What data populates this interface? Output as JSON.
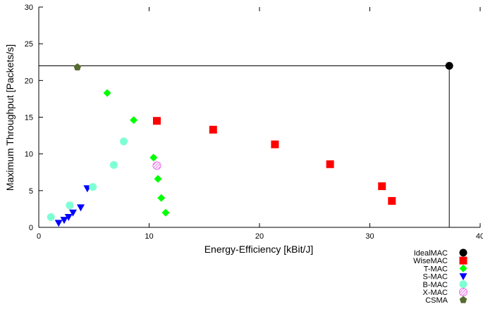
{
  "chart_data": {
    "type": "scatter",
    "title": "",
    "xlabel": "Energy-Efficiency [kBit/J]",
    "ylabel": "Maximum Throughput [Packets/s]",
    "xlim": [
      0,
      40
    ],
    "ylim": [
      0,
      30
    ],
    "x_ticks": [
      "0",
      "10",
      "20",
      "30",
      "40"
    ],
    "y_ticks": [
      "0",
      "5",
      "10",
      "15",
      "20",
      "25",
      "30"
    ],
    "legend_position": "bottom-right, below plot",
    "reference_lines": [
      {
        "from": [
          0,
          22
        ],
        "to": [
          37.2,
          22
        ]
      },
      {
        "from": [
          37.2,
          22
        ],
        "to": [
          37.2,
          0
        ]
      }
    ],
    "series": [
      {
        "name": "IdealMAC",
        "marker": "circle",
        "color": "#000000",
        "points": [
          [
            37.2,
            22.0
          ]
        ]
      },
      {
        "name": "WiseMAC",
        "marker": "square",
        "color": "#ff0000",
        "points": [
          [
            10.7,
            14.5
          ],
          [
            15.8,
            13.3
          ],
          [
            21.4,
            11.3
          ],
          [
            26.4,
            8.6
          ],
          [
            31.1,
            5.6
          ],
          [
            32.0,
            3.6
          ]
        ]
      },
      {
        "name": "T-MAC",
        "marker": "diamond",
        "color": "#00ff00",
        "points": [
          [
            6.2,
            18.3
          ],
          [
            8.6,
            14.6
          ],
          [
            10.4,
            9.5
          ],
          [
            10.8,
            6.6
          ],
          [
            11.1,
            4.0
          ],
          [
            11.5,
            2.0
          ]
        ]
      },
      {
        "name": "S-MAC",
        "marker": "triangle-down",
        "color": "#0000ff",
        "points": [
          [
            4.4,
            5.3
          ],
          [
            3.8,
            2.7
          ],
          [
            3.1,
            2.0
          ],
          [
            2.7,
            1.4
          ],
          [
            2.3,
            1.0
          ],
          [
            1.8,
            0.6
          ]
        ]
      },
      {
        "name": "B-MAC",
        "marker": "circle",
        "color": "#7fffd4",
        "points": [
          [
            7.7,
            11.7
          ],
          [
            6.8,
            8.5
          ],
          [
            4.9,
            5.5
          ],
          [
            2.8,
            3.0
          ],
          [
            1.1,
            1.4
          ]
        ]
      },
      {
        "name": "X-MAC",
        "marker": "circle-pattern",
        "color": "#ee82ee",
        "points": [
          [
            10.7,
            8.4
          ]
        ]
      },
      {
        "name": "CSMA",
        "marker": "pentagon",
        "color": "#556b2f",
        "points": [
          [
            3.5,
            21.8
          ]
        ]
      }
    ]
  }
}
